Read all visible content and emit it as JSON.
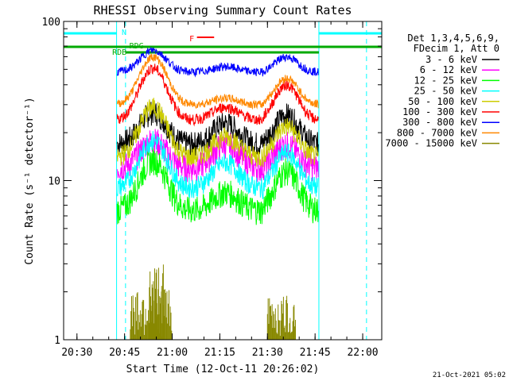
{
  "chart_data": {
    "type": "line",
    "title": "RHESSI Observing Summary Count Rates",
    "xlabel": "Start Time (12-Oct-11 20:26:02)",
    "ylabel": "Count Rate (s⁻¹ detector⁻¹)",
    "yscale": "log",
    "ylim": [
      1,
      100
    ],
    "xlim_minutes": [
      20.43,
      22.1
    ],
    "x_tick_labels": [
      "20:30",
      "20:45",
      "21:00",
      "21:15",
      "21:30",
      "21:45",
      "22:00"
    ],
    "x_tick_values": [
      20.5,
      20.75,
      21.0,
      21.25,
      21.5,
      21.75,
      22.0
    ],
    "y_tick_labels": [
      "1",
      "10",
      "100"
    ],
    "y_tick_values": [
      1,
      10,
      100
    ],
    "legend_header": [
      "Det 1,3,4,5,6,9,",
      "FDecim 1, Att 0"
    ],
    "legend_position": "right",
    "timestamp": "21-Oct-2021 05:02",
    "markers": [
      {
        "label": "N",
        "color": "#00ffff"
      },
      {
        "label": "RDG",
        "color": "#00aa00"
      },
      {
        "label": "RDB",
        "color": "#00aa00"
      },
      {
        "label": "F",
        "color": "#ff0000"
      }
    ],
    "series": [
      {
        "name": "3 - 6 keV",
        "color": "#000000"
      },
      {
        "name": "6 - 12 keV",
        "color": "#ff00ff"
      },
      {
        "name": "12 - 25 keV",
        "color": "#00ff00"
      },
      {
        "name": "25 - 50 keV",
        "color": "#00ffff"
      },
      {
        "name": "50 - 100 keV",
        "color": "#cccc00"
      },
      {
        "name": "100 - 300 keV",
        "color": "#ff0000"
      },
      {
        "name": "300 - 800 keV",
        "color": "#0000ff"
      },
      {
        "name": "800 - 7000 keV",
        "color": "#ff8800"
      },
      {
        "name": "7000 - 15000 keV",
        "color": "#888800"
      }
    ]
  }
}
